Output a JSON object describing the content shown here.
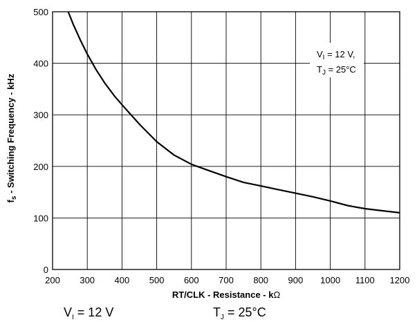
{
  "chart_data": {
    "type": "line",
    "title": "",
    "xlabel": {
      "main": "RT/CLK - Resistance - k",
      "unit": "Ω"
    },
    "ylabel": {
      "f": "f",
      "sub": "s",
      "rest": " - Switching Frequency - kHz"
    },
    "xlim": [
      200,
      1200
    ],
    "ylim": [
      0,
      500
    ],
    "xticks": [
      200,
      300,
      400,
      500,
      600,
      700,
      800,
      900,
      1000,
      1100,
      1200
    ],
    "yticks": [
      0,
      100,
      200,
      300,
      400,
      500
    ],
    "grid": true,
    "series": [
      {
        "x": [
          245,
          260,
          280,
          300,
          325,
          350,
          380,
          410,
          450,
          500,
          550,
          600,
          650,
          700,
          750,
          800,
          850,
          900,
          950,
          1000,
          1050,
          1100,
          1150,
          1200
        ],
        "y": [
          500,
          475,
          445,
          418,
          388,
          362,
          335,
          312,
          282,
          248,
          222,
          204,
          192,
          180,
          169,
          162,
          155,
          148,
          141,
          133,
          124,
          118,
          114,
          110
        ]
      }
    ],
    "annotation": {
      "line1_a": "V",
      "line1_sub": "I",
      "line1_b": " = 12 V,",
      "line2_a": "T",
      "line2_sub": "J",
      "line2_b": " = 25°C"
    }
  },
  "caption": {
    "left_a": "V",
    "left_sub": "I",
    "left_b": " = 12 V",
    "right_a": "T",
    "right_sub": "J",
    "right_b": " = 25°C"
  }
}
